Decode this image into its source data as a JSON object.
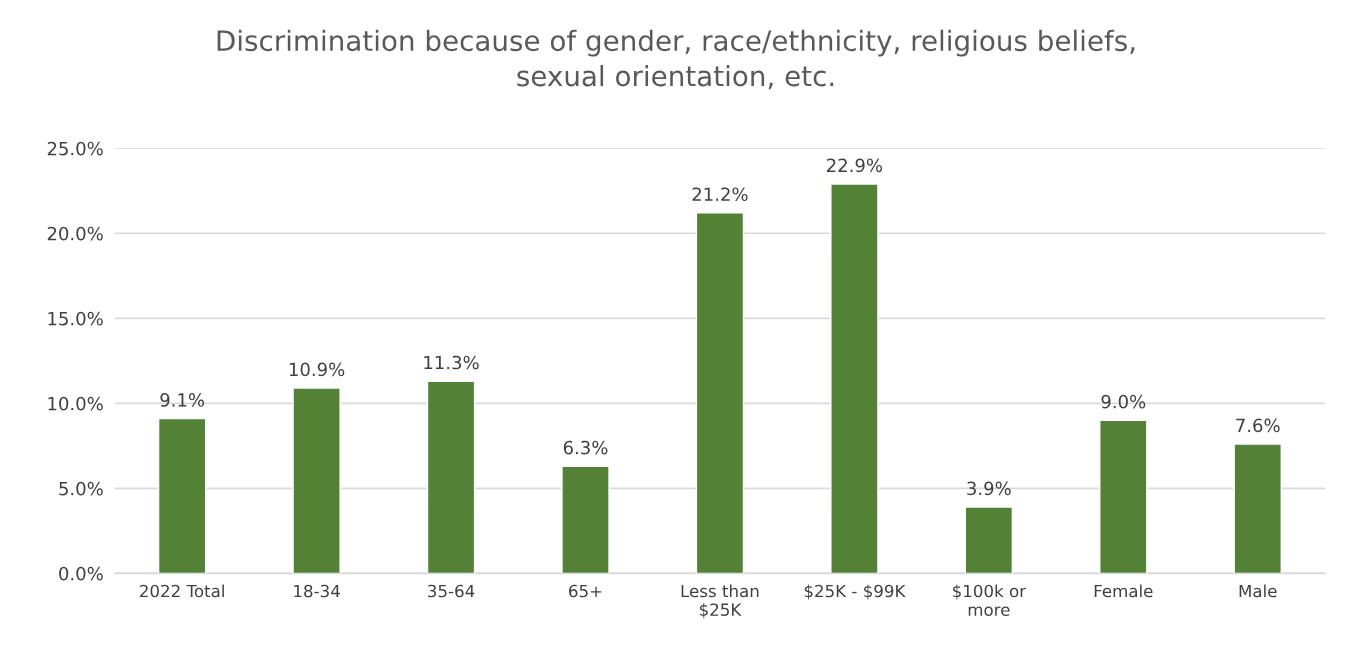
{
  "chart_data": {
    "type": "bar",
    "title": "Discrimination because of gender, race/ethnicity, religious beliefs,\nsexual orientation, etc.",
    "categories": [
      "2022 Total",
      "18-34",
      "35-64",
      "65+",
      "Less than\n$25K",
      "$25K - $99K",
      "$100k or\nmore",
      "Female",
      "Male"
    ],
    "values": [
      9.1,
      10.9,
      11.3,
      6.3,
      21.2,
      22.9,
      3.9,
      9.0,
      7.6
    ],
    "value_labels": [
      "9.1%",
      "10.9%",
      "11.3%",
      "6.3%",
      "21.2%",
      "22.9%",
      "3.9%",
      "9.0%",
      "7.6%"
    ],
    "color": "#538135",
    "ylim": [
      0,
      25
    ],
    "yticks": [
      {
        "value": 0,
        "label": "0.0%"
      },
      {
        "value": 5,
        "label": "5.0%"
      },
      {
        "value": 10,
        "label": "10.0%"
      },
      {
        "value": 15,
        "label": "15.0%"
      },
      {
        "value": 20,
        "label": "20.0%"
      },
      {
        "value": 25,
        "label": "25.0%"
      }
    ],
    "grid": "y"
  }
}
